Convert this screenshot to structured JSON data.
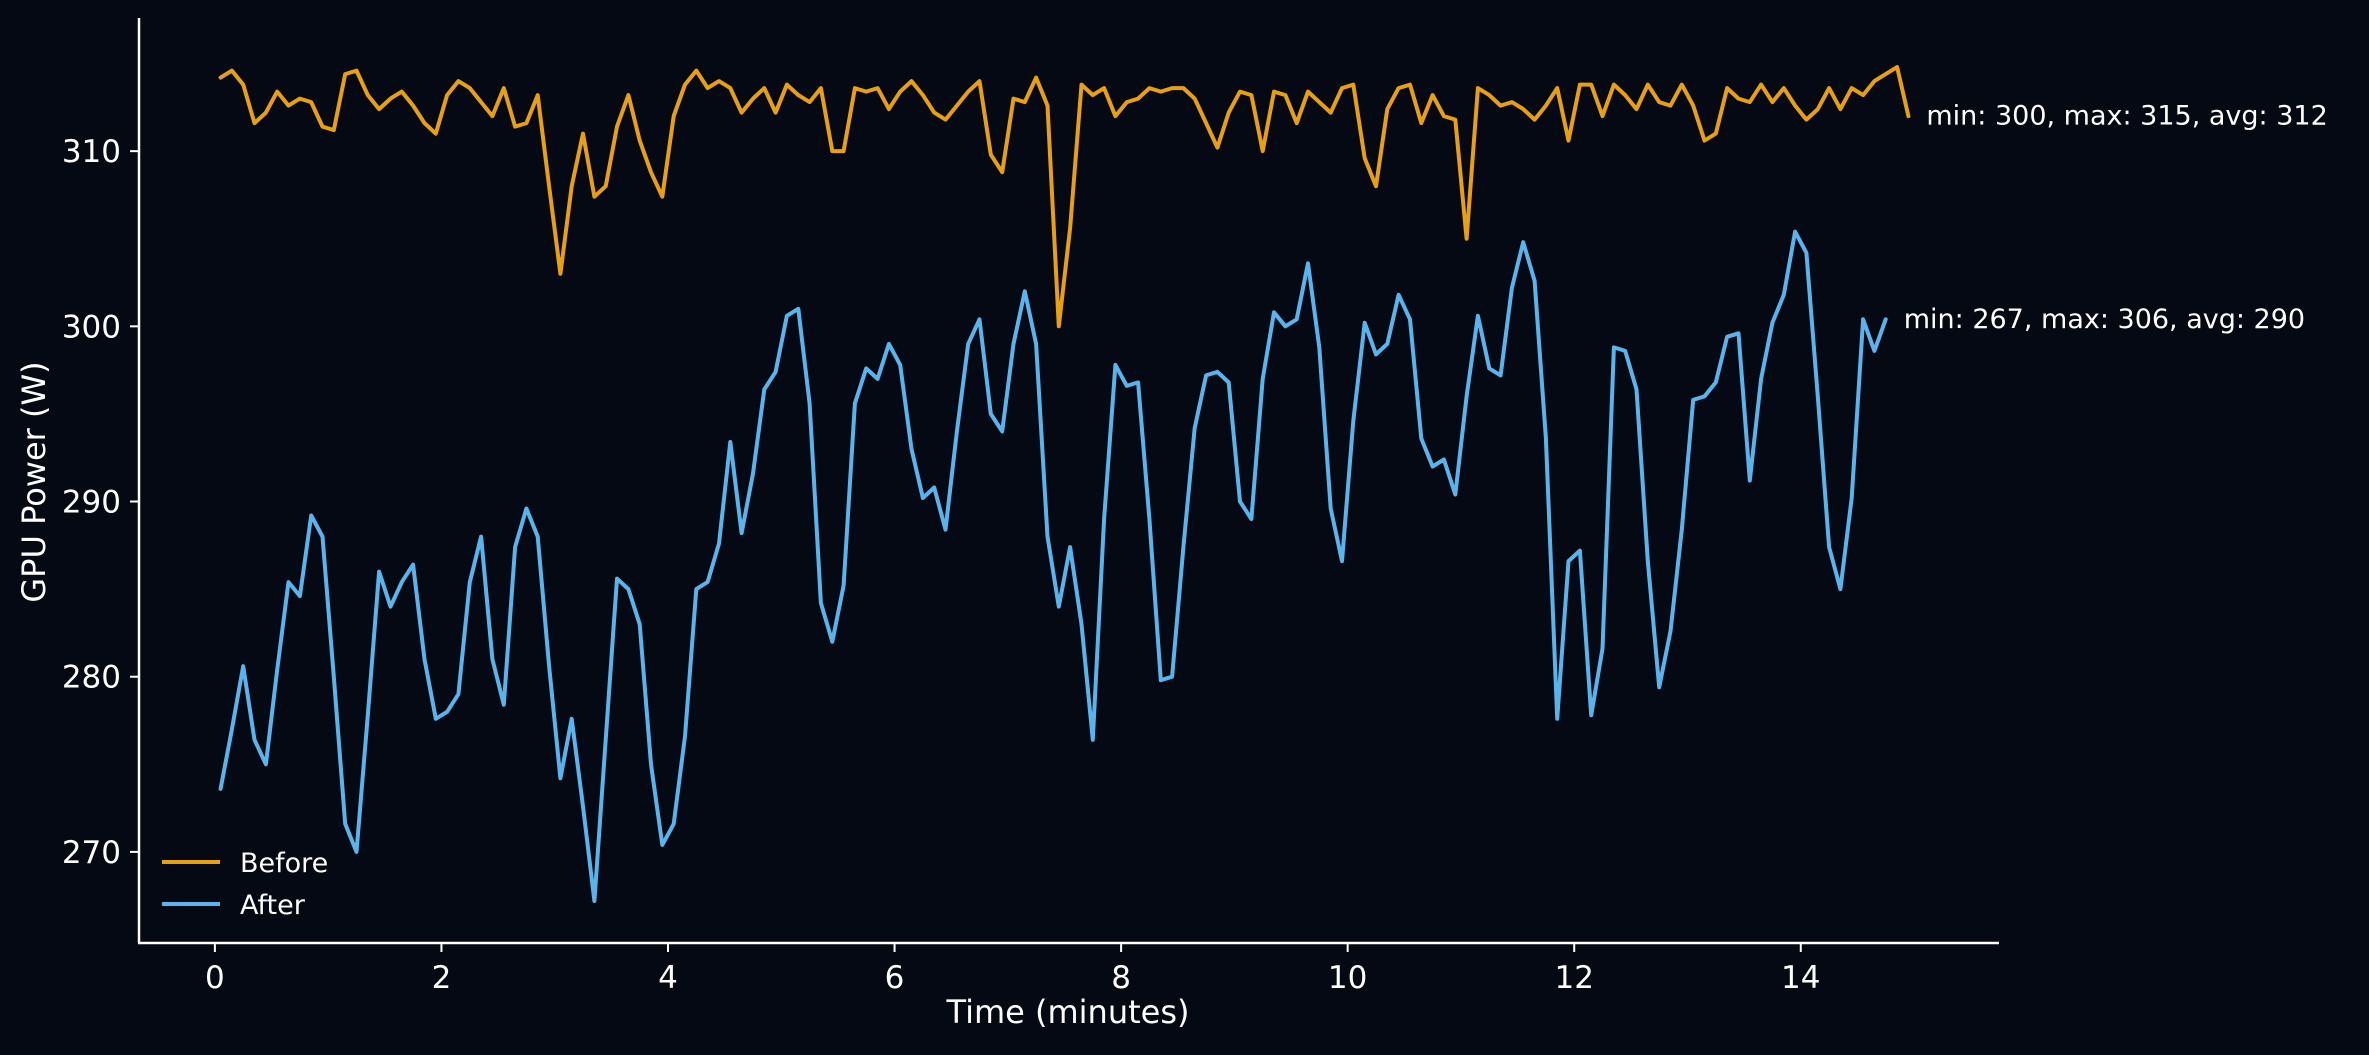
{
  "page": {
    "background": "#050913"
  },
  "chart_data": {
    "type": "line",
    "title": "",
    "xlabel": "Time (minutes)",
    "ylabel": "GPU Power (W)",
    "xlim": [
      -0.67,
      15.75
    ],
    "ylim": [
      264.8,
      317.6
    ],
    "xticks": [
      0,
      2,
      4,
      6,
      8,
      10,
      12,
      14
    ],
    "yticks": [
      270,
      280,
      290,
      300,
      310
    ],
    "grid": false,
    "legend_position": "lower-left",
    "axis_color": "#ffffff",
    "series": [
      {
        "name": "Before",
        "color": "#e8a010",
        "annotation": "min: 300, max: 315, avg: 312",
        "x": [
          0.05,
          0.15,
          0.25,
          0.35,
          0.45,
          0.55,
          0.65,
          0.75,
          0.85,
          0.95,
          1.05,
          1.15,
          1.25,
          1.35,
          1.45,
          1.55,
          1.65,
          1.75,
          1.85,
          1.95,
          2.05,
          2.15,
          2.25,
          2.35,
          2.45,
          2.55,
          2.65,
          2.75,
          2.85,
          2.95,
          3.05,
          3.15,
          3.25,
          3.35,
          3.45,
          3.55,
          3.65,
          3.75,
          3.85,
          3.95,
          4.05,
          4.15,
          4.25,
          4.35,
          4.45,
          4.55,
          4.65,
          4.75,
          4.85,
          4.95,
          5.05,
          5.15,
          5.25,
          5.35,
          5.45,
          5.55,
          5.65,
          5.75,
          5.85,
          5.95,
          6.05,
          6.15,
          6.25,
          6.35,
          6.45,
          6.55,
          6.65,
          6.75,
          6.85,
          6.95,
          7.05,
          7.15,
          7.25,
          7.35,
          7.45,
          7.55,
          7.65,
          7.75,
          7.85,
          7.95,
          8.05,
          8.15,
          8.25,
          8.35,
          8.45,
          8.55,
          8.65,
          8.75,
          8.85,
          8.95,
          9.05,
          9.15,
          9.25,
          9.35,
          9.45,
          9.55,
          9.65,
          9.75,
          9.85,
          9.95,
          10.05,
          10.15,
          10.25,
          10.35,
          10.45,
          10.55,
          10.65,
          10.75,
          10.85,
          10.95,
          11.05,
          11.15,
          11.25,
          11.35,
          11.45,
          11.55,
          11.65,
          11.75,
          11.85,
          11.95,
          12.05,
          12.15,
          12.25,
          12.35,
          12.45,
          12.55,
          12.65,
          12.75,
          12.85,
          12.95,
          13.05,
          13.15,
          13.25,
          13.35,
          13.45,
          13.55,
          13.65,
          13.75,
          13.85,
          13.95,
          14.05,
          14.15,
          14.25,
          14.35,
          14.45,
          14.55,
          14.65,
          14.75,
          14.85,
          14.95
        ],
        "y": [
          314.2,
          314.6,
          313.8,
          311.6,
          312.2,
          313.4,
          312.6,
          313.0,
          312.8,
          311.4,
          311.2,
          314.4,
          314.6,
          313.2,
          312.4,
          313.0,
          313.4,
          312.6,
          311.6,
          311.0,
          313.2,
          314.0,
          313.6,
          312.8,
          312.0,
          313.6,
          311.4,
          311.6,
          313.2,
          308.0,
          303.0,
          308.0,
          311.0,
          307.4,
          308.0,
          311.4,
          313.2,
          310.6,
          308.8,
          307.4,
          312.0,
          313.8,
          314.6,
          313.6,
          314.0,
          313.6,
          312.2,
          313.0,
          313.6,
          312.2,
          313.8,
          313.2,
          312.8,
          313.6,
          310.0,
          310.0,
          313.6,
          313.4,
          313.6,
          312.4,
          313.4,
          314.0,
          313.2,
          312.2,
          311.8,
          312.6,
          313.4,
          314.0,
          309.8,
          308.8,
          313.0,
          312.8,
          314.2,
          312.6,
          300.0,
          305.6,
          313.8,
          313.2,
          313.6,
          312.0,
          312.8,
          313.0,
          313.6,
          313.4,
          313.6,
          313.6,
          313.0,
          311.6,
          310.2,
          312.2,
          313.4,
          313.2,
          310.0,
          313.4,
          313.2,
          311.6,
          313.4,
          312.8,
          312.2,
          313.6,
          313.8,
          309.6,
          308.0,
          312.4,
          313.6,
          313.8,
          311.6,
          313.2,
          312.0,
          311.8,
          305.0,
          313.6,
          313.2,
          312.6,
          312.8,
          312.4,
          311.8,
          312.6,
          313.6,
          310.6,
          313.8,
          313.8,
          312.0,
          313.8,
          313.2,
          312.4,
          313.8,
          312.8,
          312.6,
          313.8,
          312.6,
          310.6,
          311.0,
          313.6,
          313.0,
          312.8,
          313.8,
          312.8,
          313.6,
          312.6,
          311.8,
          312.4,
          313.6,
          312.4,
          313.6,
          313.2,
          314.0,
          314.4,
          314.8,
          312.0
        ]
      },
      {
        "name": "After",
        "color": "#5ab4ec",
        "annotation": "min: 267, max: 306, avg: 290",
        "x": [
          0.05,
          0.15,
          0.25,
          0.35,
          0.45,
          0.55,
          0.65,
          0.75,
          0.85,
          0.95,
          1.05,
          1.15,
          1.25,
          1.35,
          1.45,
          1.55,
          1.65,
          1.75,
          1.85,
          1.95,
          2.05,
          2.15,
          2.25,
          2.35,
          2.45,
          2.55,
          2.65,
          2.75,
          2.85,
          2.95,
          3.05,
          3.15,
          3.25,
          3.35,
          3.45,
          3.55,
          3.65,
          3.75,
          3.85,
          3.95,
          4.05,
          4.15,
          4.25,
          4.35,
          4.45,
          4.55,
          4.65,
          4.75,
          4.85,
          4.95,
          5.05,
          5.15,
          5.25,
          5.35,
          5.45,
          5.55,
          5.65,
          5.75,
          5.85,
          5.95,
          6.05,
          6.15,
          6.25,
          6.35,
          6.45,
          6.55,
          6.65,
          6.75,
          6.85,
          6.95,
          7.05,
          7.15,
          7.25,
          7.35,
          7.45,
          7.55,
          7.65,
          7.75,
          7.85,
          7.95,
          8.05,
          8.15,
          8.25,
          8.35,
          8.45,
          8.55,
          8.65,
          8.75,
          8.85,
          8.95,
          9.05,
          9.15,
          9.25,
          9.35,
          9.45,
          9.55,
          9.65,
          9.75,
          9.85,
          9.95,
          10.05,
          10.15,
          10.25,
          10.35,
          10.45,
          10.55,
          10.65,
          10.75,
          10.85,
          10.95,
          11.05,
          11.15,
          11.25,
          11.35,
          11.45,
          11.55,
          11.65,
          11.75,
          11.85,
          11.95,
          12.05,
          12.15,
          12.25,
          12.35,
          12.45,
          12.55,
          12.65,
          12.75,
          12.85,
          12.95,
          13.05,
          13.15,
          13.25,
          13.35,
          13.45,
          13.55,
          13.65,
          13.75,
          13.85,
          13.95,
          14.05,
          14.15,
          14.25,
          14.35,
          14.45,
          14.55,
          14.65,
          14.75
        ],
        "y": [
          273.6,
          277.0,
          280.6,
          276.4,
          275.0,
          280.4,
          285.4,
          284.6,
          289.2,
          288.0,
          280.0,
          271.6,
          270.0,
          277.8,
          286.0,
          284.0,
          285.4,
          286.4,
          281.0,
          277.6,
          278.0,
          279.0,
          285.4,
          288.0,
          281.0,
          278.4,
          287.4,
          289.6,
          288.0,
          280.6,
          274.2,
          277.6,
          272.6,
          267.2,
          276.4,
          285.6,
          285.0,
          283.0,
          275.0,
          270.4,
          271.6,
          276.6,
          285.0,
          285.4,
          287.6,
          293.4,
          288.2,
          291.6,
          296.4,
          297.4,
          300.6,
          301.0,
          295.6,
          284.2,
          282.0,
          285.2,
          295.6,
          297.6,
          297.0,
          299.0,
          297.8,
          293.0,
          290.2,
          290.8,
          288.4,
          294.0,
          299.0,
          300.4,
          295.0,
          294.0,
          299.0,
          302.0,
          299.0,
          288.0,
          284.0,
          287.4,
          283.0,
          276.4,
          289.0,
          297.8,
          296.6,
          296.8,
          289.0,
          279.8,
          280.0,
          287.4,
          294.2,
          297.2,
          297.4,
          296.8,
          290.0,
          289.0,
          297.0,
          300.8,
          300.0,
          300.4,
          303.6,
          298.8,
          289.6,
          286.6,
          294.6,
          300.2,
          298.4,
          299.0,
          301.8,
          300.4,
          293.6,
          292.0,
          292.4,
          290.4,
          296.0,
          300.6,
          297.6,
          297.2,
          302.2,
          304.8,
          302.6,
          293.6,
          277.6,
          286.6,
          287.2,
          277.8,
          281.6,
          298.8,
          298.6,
          296.4,
          286.6,
          279.4,
          282.6,
          288.4,
          295.8,
          296.0,
          296.8,
          299.4,
          299.6,
          291.2,
          297.0,
          300.2,
          301.8,
          305.4,
          304.2,
          296.0,
          287.4,
          285.0,
          290.2,
          300.4,
          298.6,
          300.4
        ]
      }
    ]
  }
}
